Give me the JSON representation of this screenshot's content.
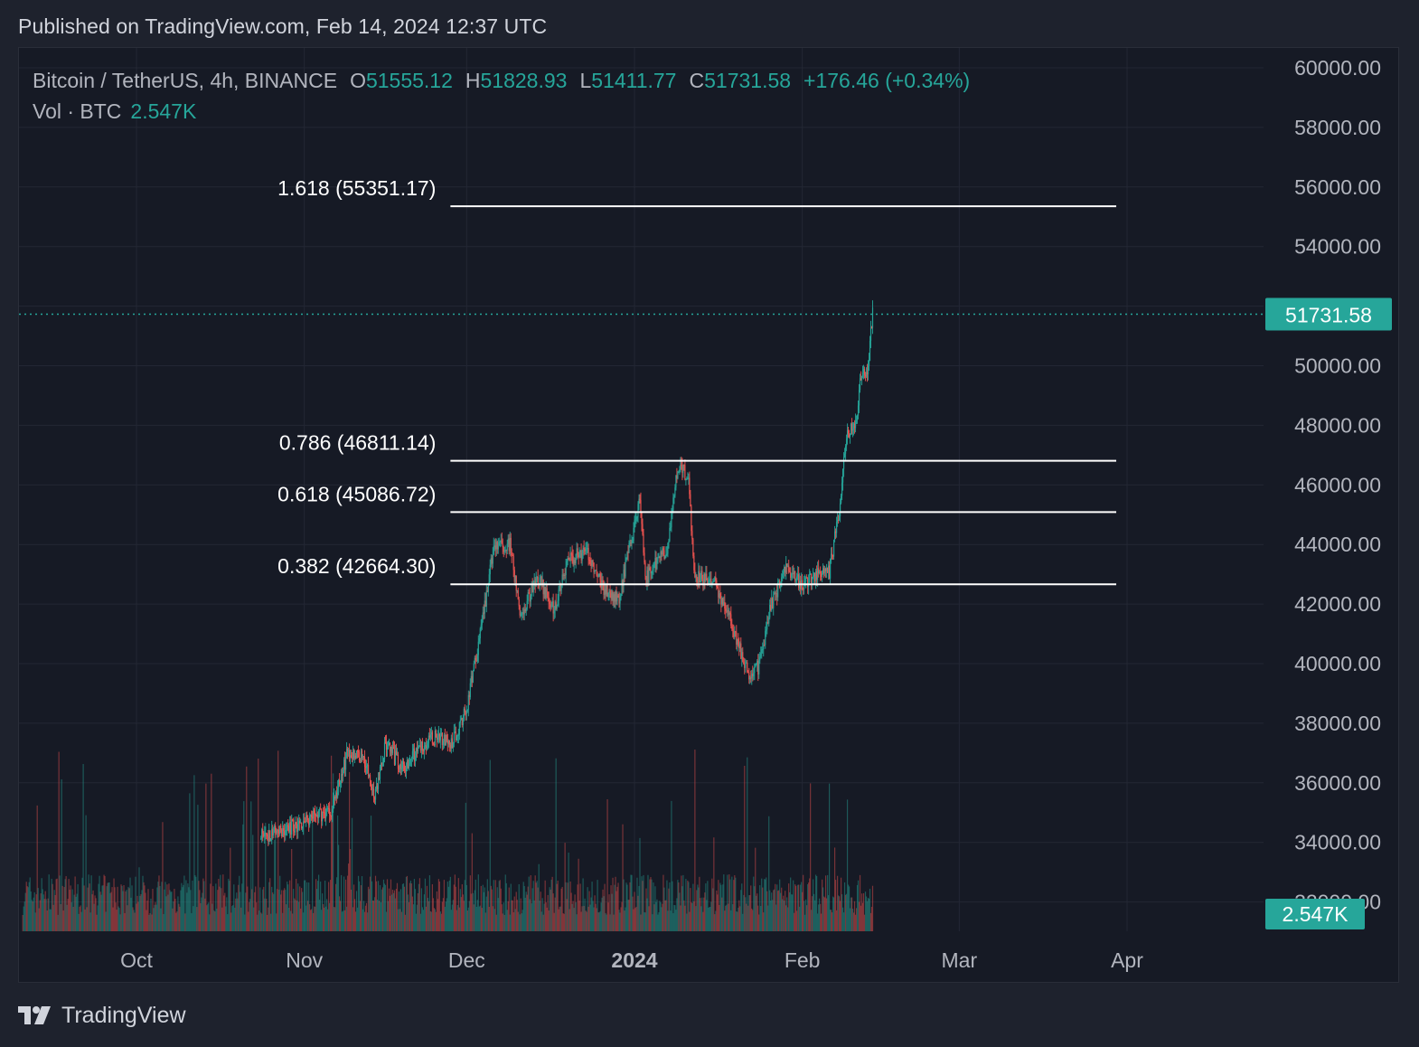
{
  "header": {
    "published": "Published on TradingView.com, Feb 14, 2024 12:37 UTC"
  },
  "legend": {
    "symbol": "Bitcoin / TetherUS, 4h, BINANCE",
    "open_label": "O",
    "open": "51555.12",
    "high_label": "H",
    "high": "51828.93",
    "low_label": "L",
    "low": "51411.77",
    "close_label": "C",
    "close": "51731.58",
    "change": "+176.46 (+0.34%)",
    "volume_label": "Vol · BTC",
    "volume": "2.547K"
  },
  "colors": {
    "up": "#26a69a",
    "down": "#ef5350",
    "background": "#161a25",
    "grid": "#232734",
    "fib_line": "#ffffff"
  },
  "footer": {
    "brand": "TradingView",
    "brand_icon": "tradingview-logo-icon"
  },
  "chart_data": {
    "type": "candlestick",
    "title": "",
    "xlabel": "",
    "ylabel": "",
    "ylim": [
      31500,
      60500
    ],
    "y_ticks": [
      60000,
      58000,
      56000,
      54000,
      52000,
      50000,
      48000,
      46000,
      44000,
      42000,
      40000,
      38000,
      36000,
      34000,
      32000
    ],
    "y_tick_labels": [
      "60000.00",
      "58000.00",
      "56000.00",
      "54000.00",
      "52000.00",
      "50000.00",
      "48000.00",
      "46000.00",
      "44000.00",
      "42000.00",
      "40000.00",
      "38000.00",
      "36000.00",
      "34000.00",
      "32000.00"
    ],
    "x_ticks": [
      {
        "label": "Oct",
        "date": "2023-10-01",
        "bold": false
      },
      {
        "label": "Nov",
        "date": "2023-11-01",
        "bold": false
      },
      {
        "label": "Dec",
        "date": "2023-12-01",
        "bold": false
      },
      {
        "label": "2024",
        "date": "2024-01-01",
        "bold": true
      },
      {
        "label": "Feb",
        "date": "2024-02-01",
        "bold": false
      },
      {
        "label": "Mar",
        "date": "2024-03-01",
        "bold": false
      },
      {
        "label": "Apr",
        "date": "2024-04-01",
        "bold": false
      }
    ],
    "x_range": [
      "2023-09-09",
      "2024-04-28"
    ],
    "grid": true,
    "last_price": 51731.58,
    "last_price_label": "51731.58",
    "last_volume_label": "2.547K",
    "fib_levels": [
      {
        "label": "1.618 (55351.17)",
        "ratio": 1.618,
        "price": 55351.17,
        "from": "2023-11-28",
        "to": "2024-03-30"
      },
      {
        "label": "0.786 (46811.14)",
        "ratio": 0.786,
        "price": 46811.14,
        "from": "2023-11-28",
        "to": "2024-03-30"
      },
      {
        "label": "0.618 (45086.72)",
        "ratio": 0.618,
        "price": 45086.72,
        "from": "2023-11-28",
        "to": "2024-03-30"
      },
      {
        "label": "0.382 (42664.30)",
        "ratio": 0.382,
        "price": 42664.3,
        "from": "2023-11-28",
        "to": "2024-03-30"
      }
    ],
    "price_path": [
      {
        "date": "2023-10-24",
        "close": 34200
      },
      {
        "date": "2023-10-28",
        "close": 34400
      },
      {
        "date": "2023-11-01",
        "close": 34700
      },
      {
        "date": "2023-11-06",
        "close": 35100
      },
      {
        "date": "2023-11-09",
        "close": 37000
      },
      {
        "date": "2023-11-12",
        "close": 36900
      },
      {
        "date": "2023-11-14",
        "close": 35500
      },
      {
        "date": "2023-11-16",
        "close": 37300
      },
      {
        "date": "2023-11-19",
        "close": 36500
      },
      {
        "date": "2023-11-23",
        "close": 37300
      },
      {
        "date": "2023-11-26",
        "close": 37600
      },
      {
        "date": "2023-11-28",
        "close": 37200
      },
      {
        "date": "2023-12-01",
        "close": 38500
      },
      {
        "date": "2023-12-04",
        "close": 41500
      },
      {
        "date": "2023-12-06",
        "close": 43900
      },
      {
        "date": "2023-12-09",
        "close": 44000
      },
      {
        "date": "2023-12-11",
        "close": 41500
      },
      {
        "date": "2023-12-14",
        "close": 43000
      },
      {
        "date": "2023-12-17",
        "close": 41800
      },
      {
        "date": "2023-12-20",
        "close": 43500
      },
      {
        "date": "2023-12-23",
        "close": 43800
      },
      {
        "date": "2023-12-26",
        "close": 42600
      },
      {
        "date": "2023-12-29",
        "close": 42100
      },
      {
        "date": "2024-01-02",
        "close": 45500
      },
      {
        "date": "2024-01-03",
        "close": 42800
      },
      {
        "date": "2024-01-07",
        "close": 43900
      },
      {
        "date": "2024-01-09",
        "close": 46600
      },
      {
        "date": "2024-01-11",
        "close": 46300
      },
      {
        "date": "2024-01-12",
        "close": 43000
      },
      {
        "date": "2024-01-16",
        "close": 42700
      },
      {
        "date": "2024-01-19",
        "close": 41300
      },
      {
        "date": "2024-01-22",
        "close": 39700
      },
      {
        "date": "2024-01-24",
        "close": 39900
      },
      {
        "date": "2024-01-26",
        "close": 41800
      },
      {
        "date": "2024-01-29",
        "close": 43300
      },
      {
        "date": "2024-02-01",
        "close": 42600
      },
      {
        "date": "2024-02-03",
        "close": 43000
      },
      {
        "date": "2024-02-06",
        "close": 43100
      },
      {
        "date": "2024-02-08",
        "close": 45300
      },
      {
        "date": "2024-02-09",
        "close": 47500
      },
      {
        "date": "2024-02-11",
        "close": 48200
      },
      {
        "date": "2024-02-12",
        "close": 49900
      },
      {
        "date": "2024-02-13",
        "close": 49700
      },
      {
        "date": "2024-02-14",
        "close": 51731.58
      }
    ]
  }
}
